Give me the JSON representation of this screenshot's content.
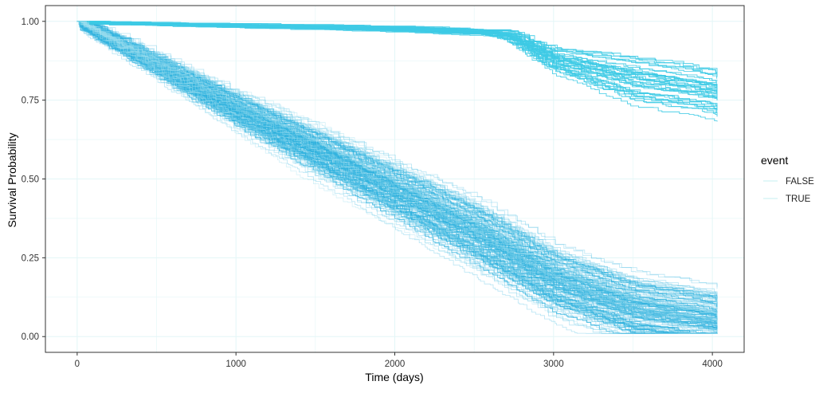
{
  "chart_data": {
    "type": "line",
    "title": "",
    "xlabel": "Time (days)",
    "ylabel": "Survival Probability",
    "xlim": [
      -200,
      4200
    ],
    "ylim": [
      -0.05,
      1.05
    ],
    "x_ticks": [
      0,
      1000,
      2000,
      3000,
      4000
    ],
    "x_tick_labels": [
      "0",
      "1000",
      "2000",
      "3000",
      "4000"
    ],
    "y_ticks": [
      0.0,
      0.25,
      0.5,
      0.75,
      1.0
    ],
    "y_tick_labels": [
      "0.00",
      "0.25",
      "0.50",
      "0.75",
      "1.00"
    ],
    "grid": true,
    "legend": {
      "title": "event",
      "position": "right",
      "entries": [
        "FALSE",
        "TRUE"
      ]
    },
    "series": [
      {
        "name": "FALSE",
        "color": "#b9ecef",
        "representative_curve": {
          "x": [
            0,
            500,
            1000,
            1500,
            2000,
            2500,
            3000,
            3500,
            4000,
            4030
          ],
          "y": [
            1.0,
            0.86,
            0.72,
            0.59,
            0.46,
            0.33,
            0.18,
            0.09,
            0.05,
            0.04
          ]
        }
      },
      {
        "name": "TRUE",
        "color": "#b9ecef",
        "representative_curve": {
          "x": [
            0,
            500,
            1000,
            1500,
            2000,
            2500,
            2700,
            3000,
            3500,
            4000,
            4030
          ],
          "y": [
            1.0,
            0.995,
            0.99,
            0.985,
            0.98,
            0.97,
            0.96,
            0.88,
            0.82,
            0.78,
            0.77
          ]
        }
      }
    ],
    "band_color": "#33b5e0",
    "band_color_upper": "#3ecbe6"
  }
}
